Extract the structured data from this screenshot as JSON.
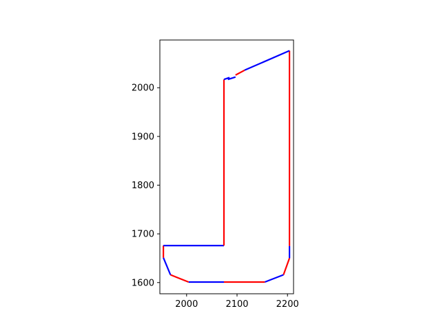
{
  "chart_data": {
    "type": "line",
    "title": "",
    "xlabel": "",
    "ylabel": "",
    "xlim": [
      1947,
      2212
    ],
    "ylim": [
      1577,
      2098
    ],
    "x_ticks": [
      2000,
      2100,
      2200
    ],
    "x_tick_labels": [
      "2000",
      "2100",
      "2200"
    ],
    "y_ticks": [
      1600,
      1700,
      1800,
      1900,
      2000
    ],
    "y_tick_labels": [
      "1600",
      "1700",
      "1800",
      "1900",
      "2000"
    ],
    "grid": false,
    "legend": "none",
    "aspect": "equal",
    "colors": {
      "red": "#ff0000",
      "blue": "#0000ff"
    },
    "segments": [
      {
        "color": "red",
        "points": [
          [
            2204,
            2076
          ],
          [
            2204,
            1675
          ]
        ]
      },
      {
        "color": "blue",
        "points": [
          [
            2204,
            1675
          ],
          [
            2204,
            1650
          ]
        ]
      },
      {
        "color": "red",
        "points": [
          [
            2204,
            1650
          ],
          [
            2192,
            1616
          ]
        ]
      },
      {
        "color": "blue",
        "points": [
          [
            2192,
            1616
          ],
          [
            2155,
            1601
          ]
        ]
      },
      {
        "color": "red",
        "points": [
          [
            2155,
            1601
          ],
          [
            2074,
            1601
          ]
        ]
      },
      {
        "color": "blue",
        "points": [
          [
            2074,
            1601
          ],
          [
            2004,
            1601
          ]
        ]
      },
      {
        "color": "red",
        "points": [
          [
            2004,
            1601
          ],
          [
            1968,
            1616
          ]
        ]
      },
      {
        "color": "blue",
        "points": [
          [
            1968,
            1616
          ],
          [
            1954,
            1651
          ]
        ]
      },
      {
        "color": "red",
        "points": [
          [
            1954,
            1651
          ],
          [
            1954,
            1676
          ]
        ]
      },
      {
        "color": "blue",
        "points": [
          [
            1954,
            1676
          ],
          [
            2074,
            1676
          ]
        ]
      },
      {
        "color": "red",
        "points": [
          [
            2074,
            1676
          ],
          [
            2074,
            2017
          ]
        ]
      },
      {
        "color": "blue",
        "points": [
          [
            2074,
            2017
          ],
          [
            2085,
            2021
          ]
        ]
      },
      {
        "color": "blue",
        "points": [
          [
            2085,
            2021
          ],
          [
            2082,
            2017
          ]
        ]
      },
      {
        "color": "blue",
        "points": [
          [
            2082,
            2017
          ],
          [
            2097,
            2022
          ]
        ]
      },
      {
        "color": "red",
        "points": [
          [
            2097,
            2026
          ],
          [
            2115,
            2036
          ]
        ]
      },
      {
        "color": "blue",
        "points": [
          [
            2115,
            2036
          ],
          [
            2204,
            2076
          ]
        ]
      }
    ]
  }
}
